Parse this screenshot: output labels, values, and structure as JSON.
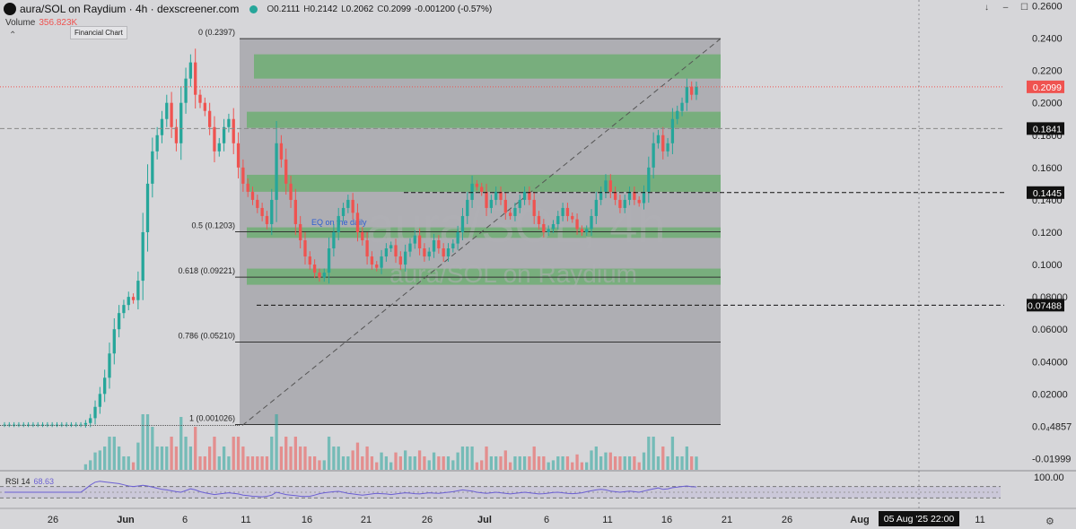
{
  "header": {
    "title": "aura/SOL on Raydium · 4h · dexscreener.com",
    "open_label": "O",
    "open": "0.2111",
    "high_label": "H",
    "high": "0.2142",
    "low_label": "L",
    "low": "0.2062",
    "close_label": "C",
    "close": "0.2099",
    "change": "-0.001200 (-0.57%)",
    "status_color": "#26a69a"
  },
  "volume": {
    "label": "Volume",
    "value": "356.823K"
  },
  "tooltip": "Financial Chart",
  "watermark": {
    "pair": "aura/SOL, 4h",
    "sub": "aura/SOL on Raydium"
  },
  "rsi": {
    "label": "RSI 14",
    "value": "68.63",
    "axis_label": "100.00"
  },
  "controls": {
    "down": "↓",
    "dash": "–",
    "max": "☐",
    "collapse": "⌃",
    "settings": "⚙"
  },
  "colors": {
    "up": "#26a69a",
    "down": "#ef5350",
    "zone": "#4caf50",
    "rsi": "#6b5fd3",
    "price_badge": "#ef5350"
  },
  "chart_data": {
    "type": "candlestick",
    "y_axis": {
      "ticks": [
        "0.2600",
        "0.2400",
        "0.2200",
        "0.2000",
        "0.1800",
        "0.1600",
        "0.1400",
        "0.1200",
        "0.1000",
        "0.08000",
        "0.06000",
        "0.04000",
        "0.02000",
        "0.0₄4857",
        "-0.01999"
      ],
      "tick_values": [
        0.26,
        0.24,
        0.22,
        0.2,
        0.18,
        0.16,
        0.14,
        0.12,
        0.1,
        0.08,
        0.06,
        0.04,
        0.02,
        4.857e-05,
        -0.01999
      ],
      "ylim": [
        -0.0275,
        0.2636
      ]
    },
    "x_axis": {
      "labels": [
        "26",
        "Jun",
        "6",
        "11",
        "16",
        "21",
        "26",
        "Jul",
        "6",
        "11",
        "16",
        "21",
        "26",
        "Aug",
        "11"
      ],
      "bold": [
        "Jun",
        "Jul",
        "Aug"
      ],
      "crosshair_label": "05 Aug '25   22:00"
    },
    "price_badges": [
      {
        "label": "0.2099",
        "value": 0.2099,
        "style": "current"
      },
      {
        "label": "0.1841",
        "value": 0.1841,
        "style": "line"
      },
      {
        "label": "0.1445",
        "value": 0.1445,
        "style": "line"
      },
      {
        "label": "0.07488",
        "value": 0.07488,
        "style": "line"
      }
    ],
    "fibonacci": [
      {
        "label": "0 (0.2397)",
        "value": 0.2397
      },
      {
        "label": "0.5 (0.1203)",
        "value": 0.1203
      },
      {
        "label": "0.618 (0.09221)",
        "value": 0.09221
      },
      {
        "label": "0.786 (0.05210)",
        "value": 0.0521
      },
      {
        "label": "1 (0.001026)",
        "value": 0.001026
      }
    ],
    "zones": [
      {
        "low": 0.215,
        "high": 0.23
      },
      {
        "low": 0.1845,
        "high": 0.1945
      },
      {
        "low": 0.145,
        "high": 0.1555
      },
      {
        "low": 0.1165,
        "high": 0.123
      },
      {
        "low": 0.0875,
        "high": 0.0975
      }
    ],
    "annotation": "EQ on the daily",
    "close_series": [
      0.001,
      0.001,
      0.001,
      0.001,
      0.001,
      0.001,
      0.001,
      0.001,
      0.001,
      0.001,
      0.001,
      0.001,
      0.001,
      0.001,
      0.001,
      0.001,
      0.001,
      0.002,
      0.005,
      0.012,
      0.02,
      0.03,
      0.045,
      0.06,
      0.07,
      0.075,
      0.08,
      0.078,
      0.09,
      0.12,
      0.15,
      0.17,
      0.18,
      0.19,
      0.2,
      0.185,
      0.175,
      0.2,
      0.215,
      0.225,
      0.205,
      0.2,
      0.195,
      0.185,
      0.17,
      0.175,
      0.185,
      0.19,
      0.175,
      0.16,
      0.15,
      0.145,
      0.14,
      0.135,
      0.13,
      0.125,
      0.14,
      0.175,
      0.165,
      0.15,
      0.14,
      0.125,
      0.115,
      0.105,
      0.1,
      0.095,
      0.092,
      0.095,
      0.11,
      0.12,
      0.13,
      0.135,
      0.14,
      0.132,
      0.12,
      0.115,
      0.105,
      0.1,
      0.098,
      0.105,
      0.11,
      0.112,
      0.105,
      0.1,
      0.108,
      0.113,
      0.118,
      0.11,
      0.105,
      0.108,
      0.115,
      0.11,
      0.105,
      0.11,
      0.113,
      0.12,
      0.13,
      0.14,
      0.15,
      0.148,
      0.145,
      0.135,
      0.14,
      0.145,
      0.14,
      0.132,
      0.13,
      0.135,
      0.14,
      0.145,
      0.14,
      0.13,
      0.125,
      0.12,
      0.122,
      0.125,
      0.13,
      0.135,
      0.13,
      0.128,
      0.122,
      0.12,
      0.122,
      0.13,
      0.14,
      0.145,
      0.152,
      0.145,
      0.14,
      0.135,
      0.14,
      0.145,
      0.14,
      0.138,
      0.145,
      0.16,
      0.175,
      0.18,
      0.17,
      0.175,
      0.19,
      0.195,
      0.2,
      0.21,
      0.205,
      0.2099
    ],
    "rsi_series": [
      50,
      50,
      50,
      50,
      50,
      50,
      50,
      50,
      50,
      50,
      50,
      50,
      50,
      50,
      50,
      50,
      50,
      62,
      75,
      85,
      88,
      86,
      84,
      82,
      80,
      76,
      72,
      70,
      72,
      74,
      72,
      68,
      64,
      60,
      58,
      55,
      52,
      50,
      56,
      62,
      58,
      52,
      48,
      45,
      42,
      44,
      46,
      48,
      46,
      44,
      40,
      38,
      36,
      35,
      34,
      36,
      40,
      50,
      46,
      42,
      40,
      38,
      36,
      35,
      36,
      40,
      45,
      48,
      50,
      52,
      53,
      50,
      46,
      44,
      42,
      40,
      42,
      44,
      46,
      45,
      44,
      42,
      44,
      46,
      48,
      47,
      45,
      44,
      46,
      48,
      47,
      46,
      48,
      50,
      52,
      55,
      58,
      56,
      54,
      50,
      48,
      46,
      48,
      50,
      48,
      46,
      44,
      46,
      48,
      50,
      48,
      46,
      44,
      45,
      47,
      49,
      50,
      48,
      46,
      45,
      46,
      48,
      52,
      55,
      58,
      60,
      58,
      54,
      52,
      50,
      52,
      54,
      52,
      50,
      54,
      58,
      62,
      65,
      60,
      62,
      66,
      68,
      70,
      72,
      69,
      68.63
    ],
    "rsi_ylim": [
      0,
      100
    ]
  }
}
